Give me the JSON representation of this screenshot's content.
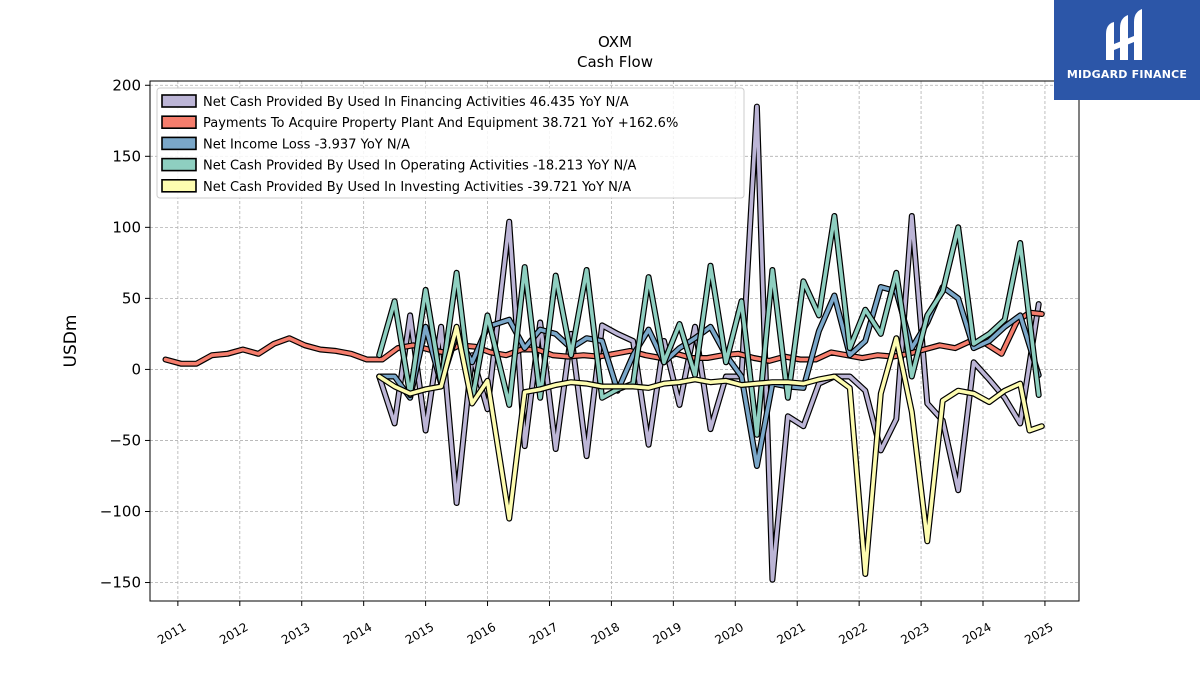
{
  "brand": {
    "name": "MIDGARD FINANCE",
    "bg_color": "#2c56a8"
  },
  "chart_data": {
    "type": "line",
    "title": "OXM",
    "subtitle": "Cash Flow",
    "xlabel": "",
    "ylabel": "USDm",
    "xlim": [
      2010.55,
      2025.55
    ],
    "ylim": [
      -163,
      203
    ],
    "yticks": [
      -150,
      -100,
      -50,
      0,
      50,
      100,
      150,
      200
    ],
    "ytick_labels": [
      "−150",
      "−100",
      "−50",
      "0",
      "50",
      "100",
      "150",
      "200"
    ],
    "xticks": [
      "2011",
      "2012",
      "2013",
      "2014",
      "2015",
      "2016",
      "2017",
      "2018",
      "2019",
      "2020",
      "2021",
      "2022",
      "2023",
      "2024",
      "2025"
    ],
    "grid": true,
    "legend_position": "top-left",
    "series": [
      {
        "name": "Net Cash Provided By Used In Financing Activities",
        "legend": "Net Cash Provided By Used In Financing Activities  46.435 YoY N/A",
        "color": "#bcb5d6",
        "points": [
          [
            2014.25,
            -5
          ],
          [
            2014.5,
            -38
          ],
          [
            2014.75,
            38
          ],
          [
            2015.0,
            -43
          ],
          [
            2015.25,
            30
          ],
          [
            2015.5,
            -94
          ],
          [
            2015.75,
            10
          ],
          [
            2016.0,
            -28
          ],
          [
            2016.35,
            104
          ],
          [
            2016.6,
            -54
          ],
          [
            2016.85,
            33
          ],
          [
            2017.1,
            -56
          ],
          [
            2017.35,
            25
          ],
          [
            2017.6,
            -61
          ],
          [
            2017.85,
            31
          ],
          [
            2018.1,
            25
          ],
          [
            2018.35,
            20
          ],
          [
            2018.6,
            -53
          ],
          [
            2018.85,
            20
          ],
          [
            2019.1,
            -25
          ],
          [
            2019.35,
            30
          ],
          [
            2019.6,
            -42
          ],
          [
            2019.85,
            -5
          ],
          [
            2020.1,
            -5
          ],
          [
            2020.35,
            185
          ],
          [
            2020.6,
            -148
          ],
          [
            2020.85,
            -33
          ],
          [
            2021.1,
            -40
          ],
          [
            2021.35,
            -10
          ],
          [
            2021.6,
            -5
          ],
          [
            2021.85,
            -5
          ],
          [
            2022.1,
            -15
          ],
          [
            2022.35,
            -57
          ],
          [
            2022.6,
            -35
          ],
          [
            2022.85,
            108
          ],
          [
            2023.1,
            -24
          ],
          [
            2023.35,
            -36
          ],
          [
            2023.6,
            -85
          ],
          [
            2023.85,
            5
          ],
          [
            2024.1,
            -7
          ],
          [
            2024.35,
            -20
          ],
          [
            2024.6,
            -38
          ],
          [
            2024.9,
            46
          ]
        ]
      },
      {
        "name": "Payments To Acquire Property Plant And Equipment",
        "legend": "Payments To Acquire Property Plant And Equipment  38.721 YoY +162.6%",
        "color": "#f57d6c",
        "points": [
          [
            2010.8,
            7
          ],
          [
            2011.05,
            4
          ],
          [
            2011.3,
            4
          ],
          [
            2011.55,
            10
          ],
          [
            2011.8,
            11
          ],
          [
            2012.05,
            14
          ],
          [
            2012.3,
            11
          ],
          [
            2012.55,
            18
          ],
          [
            2012.8,
            22
          ],
          [
            2013.05,
            17
          ],
          [
            2013.3,
            14
          ],
          [
            2013.55,
            13
          ],
          [
            2013.8,
            11
          ],
          [
            2014.05,
            7
          ],
          [
            2014.3,
            7
          ],
          [
            2014.55,
            15
          ],
          [
            2014.8,
            17
          ],
          [
            2015.05,
            14
          ],
          [
            2015.3,
            12
          ],
          [
            2015.55,
            17
          ],
          [
            2015.8,
            16
          ],
          [
            2016.05,
            12
          ],
          [
            2016.3,
            10
          ],
          [
            2016.55,
            14
          ],
          [
            2016.8,
            14
          ],
          [
            2017.05,
            10
          ],
          [
            2017.3,
            9
          ],
          [
            2017.55,
            10
          ],
          [
            2017.8,
            9
          ],
          [
            2018.05,
            11
          ],
          [
            2018.3,
            13
          ],
          [
            2018.55,
            10
          ],
          [
            2018.8,
            8
          ],
          [
            2019.05,
            11
          ],
          [
            2019.3,
            8
          ],
          [
            2019.55,
            8
          ],
          [
            2019.8,
            10
          ],
          [
            2020.05,
            11
          ],
          [
            2020.3,
            8
          ],
          [
            2020.55,
            6
          ],
          [
            2020.8,
            9
          ],
          [
            2021.05,
            7
          ],
          [
            2021.3,
            7
          ],
          [
            2021.55,
            12
          ],
          [
            2021.8,
            10
          ],
          [
            2022.05,
            8
          ],
          [
            2022.3,
            10
          ],
          [
            2022.55,
            9
          ],
          [
            2022.8,
            11
          ],
          [
            2023.05,
            14
          ],
          [
            2023.3,
            17
          ],
          [
            2023.55,
            15
          ],
          [
            2023.8,
            20
          ],
          [
            2024.05,
            18
          ],
          [
            2024.3,
            11
          ],
          [
            2024.55,
            34
          ],
          [
            2024.75,
            40
          ],
          [
            2024.95,
            39
          ]
        ]
      },
      {
        "name": "Net Income Loss",
        "legend": "Net Income Loss  -3.937 YoY N/A",
        "color": "#7aa7c9",
        "points": [
          [
            2014.25,
            -5
          ],
          [
            2014.5,
            -5
          ],
          [
            2014.75,
            -20
          ],
          [
            2015.0,
            30
          ],
          [
            2015.25,
            -10
          ],
          [
            2015.5,
            25
          ],
          [
            2015.75,
            5
          ],
          [
            2016.0,
            30
          ],
          [
            2016.35,
            35
          ],
          [
            2016.6,
            15
          ],
          [
            2016.85,
            28
          ],
          [
            2017.1,
            25
          ],
          [
            2017.35,
            15
          ],
          [
            2017.6,
            22
          ],
          [
            2017.85,
            20
          ],
          [
            2018.1,
            -15
          ],
          [
            2018.35,
            10
          ],
          [
            2018.6,
            28
          ],
          [
            2018.85,
            5
          ],
          [
            2019.1,
            15
          ],
          [
            2019.35,
            22
          ],
          [
            2019.6,
            30
          ],
          [
            2019.85,
            10
          ],
          [
            2020.1,
            -5
          ],
          [
            2020.35,
            -68
          ],
          [
            2020.6,
            -10
          ],
          [
            2020.85,
            -12
          ],
          [
            2021.1,
            -13
          ],
          [
            2021.35,
            27
          ],
          [
            2021.6,
            52
          ],
          [
            2021.85,
            10
          ],
          [
            2022.1,
            20
          ],
          [
            2022.35,
            58
          ],
          [
            2022.6,
            55
          ],
          [
            2022.85,
            15
          ],
          [
            2023.1,
            33
          ],
          [
            2023.35,
            58
          ],
          [
            2023.6,
            50
          ],
          [
            2023.85,
            15
          ],
          [
            2024.1,
            20
          ],
          [
            2024.35,
            30
          ],
          [
            2024.6,
            38
          ],
          [
            2024.9,
            -4
          ]
        ]
      },
      {
        "name": "Net Cash Provided By Used In Operating Activities",
        "legend": "Net Cash Provided By Used In Operating Activities  -18.213 YoY N/A",
        "color": "#8ecfc0",
        "points": [
          [
            2014.25,
            10
          ],
          [
            2014.5,
            48
          ],
          [
            2014.75,
            -18
          ],
          [
            2015.0,
            56
          ],
          [
            2015.25,
            -10
          ],
          [
            2015.5,
            68
          ],
          [
            2015.75,
            -22
          ],
          [
            2016.0,
            38
          ],
          [
            2016.35,
            -25
          ],
          [
            2016.6,
            72
          ],
          [
            2016.85,
            -20
          ],
          [
            2017.1,
            66
          ],
          [
            2017.35,
            10
          ],
          [
            2017.6,
            70
          ],
          [
            2017.85,
            -20
          ],
          [
            2018.1,
            -14
          ],
          [
            2018.35,
            -10
          ],
          [
            2018.6,
            65
          ],
          [
            2018.85,
            5
          ],
          [
            2019.1,
            32
          ],
          [
            2019.35,
            -4
          ],
          [
            2019.6,
            73
          ],
          [
            2019.85,
            5
          ],
          [
            2020.1,
            48
          ],
          [
            2020.35,
            -46
          ],
          [
            2020.6,
            70
          ],
          [
            2020.85,
            -20
          ],
          [
            2021.1,
            62
          ],
          [
            2021.35,
            38
          ],
          [
            2021.6,
            108
          ],
          [
            2021.85,
            15
          ],
          [
            2022.1,
            42
          ],
          [
            2022.35,
            25
          ],
          [
            2022.6,
            68
          ],
          [
            2022.85,
            -5
          ],
          [
            2023.1,
            38
          ],
          [
            2023.35,
            55
          ],
          [
            2023.6,
            100
          ],
          [
            2023.85,
            18
          ],
          [
            2024.1,
            25
          ],
          [
            2024.35,
            35
          ],
          [
            2024.6,
            89
          ],
          [
            2024.9,
            -18
          ]
        ]
      },
      {
        "name": "Net Cash Provided By Used In Investing Activities",
        "legend": "Net Cash Provided By Used In Investing Activities  -39.721 YoY N/A",
        "color": "#fdfcb0",
        "points": [
          [
            2014.25,
            -5
          ],
          [
            2014.5,
            -12
          ],
          [
            2014.75,
            -17
          ],
          [
            2015.0,
            -14
          ],
          [
            2015.25,
            -12
          ],
          [
            2015.5,
            30
          ],
          [
            2015.75,
            -24
          ],
          [
            2016.0,
            -8
          ],
          [
            2016.35,
            -105
          ],
          [
            2016.6,
            -16
          ],
          [
            2016.85,
            -14
          ],
          [
            2017.1,
            -11
          ],
          [
            2017.35,
            -9
          ],
          [
            2017.6,
            -10
          ],
          [
            2017.85,
            -12
          ],
          [
            2018.1,
            -12
          ],
          [
            2018.35,
            -12
          ],
          [
            2018.6,
            -13
          ],
          [
            2018.85,
            -10
          ],
          [
            2019.1,
            -9
          ],
          [
            2019.35,
            -7
          ],
          [
            2019.6,
            -9
          ],
          [
            2019.85,
            -8
          ],
          [
            2020.1,
            -11
          ],
          [
            2020.35,
            -10
          ],
          [
            2020.6,
            -9
          ],
          [
            2020.85,
            -9
          ],
          [
            2021.1,
            -10
          ],
          [
            2021.35,
            -7
          ],
          [
            2021.6,
            -5
          ],
          [
            2021.85,
            -13
          ],
          [
            2022.1,
            -144
          ],
          [
            2022.35,
            -17
          ],
          [
            2022.6,
            22
          ],
          [
            2022.85,
            -30
          ],
          [
            2023.1,
            -121
          ],
          [
            2023.35,
            -22
          ],
          [
            2023.6,
            -15
          ],
          [
            2023.85,
            -17
          ],
          [
            2024.1,
            -23
          ],
          [
            2024.35,
            -15
          ],
          [
            2024.6,
            -10
          ],
          [
            2024.75,
            -43
          ],
          [
            2024.95,
            -40
          ]
        ]
      }
    ]
  }
}
